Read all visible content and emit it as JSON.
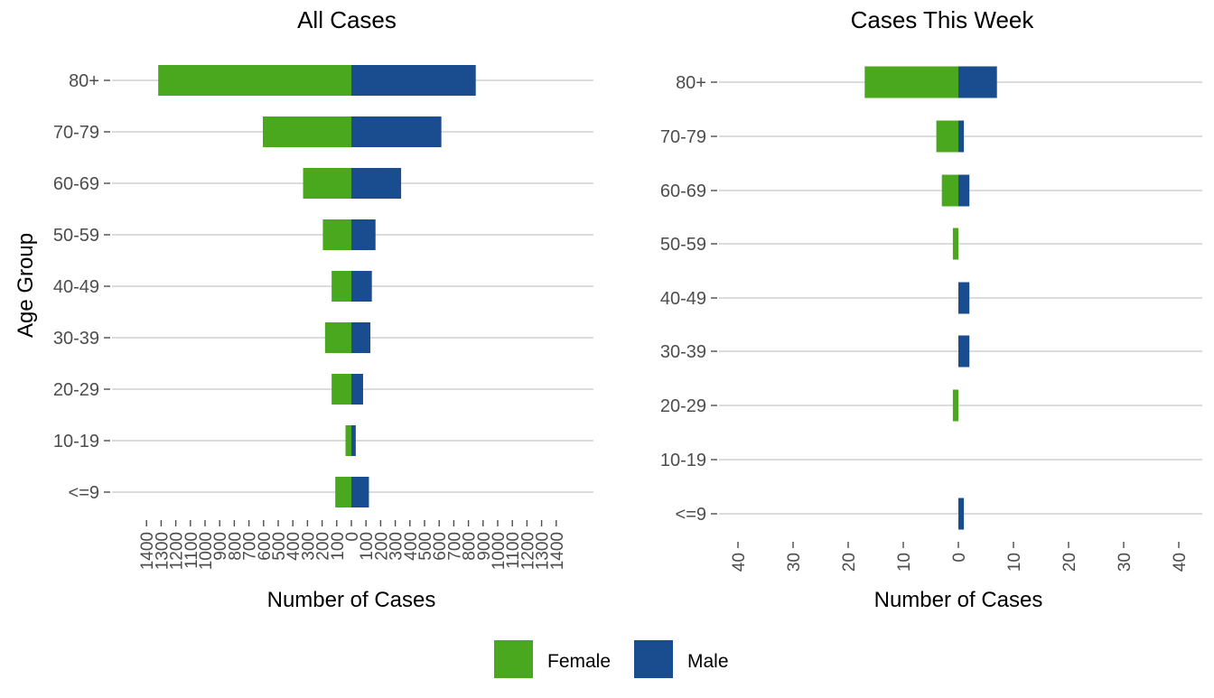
{
  "colors": {
    "female": "#4aa81f",
    "male": "#1a4d8f",
    "grid": "#d0d0d0",
    "tick": "#4d4d4d"
  },
  "shared": {
    "ylabel": "Age Group",
    "xlabel": "Number of Cases"
  },
  "legend": [
    {
      "name": "Female",
      "color": "#4aa81f"
    },
    {
      "name": "Male",
      "color": "#1a4d8f"
    }
  ],
  "chart_data": [
    {
      "type": "bar",
      "orientation": "horizontal-diverging",
      "title": "All Cases",
      "xlabel": "Number of Cases",
      "ylabel": "Age Group",
      "categories": [
        "80+",
        "70-79",
        "60-69",
        "50-59",
        "40-49",
        "30-39",
        "20-29",
        "10-19",
        "<=9"
      ],
      "series": [
        {
          "name": "Female",
          "values": [
            1320,
            605,
            330,
            195,
            135,
            180,
            135,
            40,
            110
          ]
        },
        {
          "name": "Male",
          "values": [
            850,
            615,
            340,
            165,
            140,
            130,
            80,
            30,
            120
          ]
        }
      ],
      "xlim": [
        -1400,
        1400
      ],
      "x_ticks": [
        -1400,
        -1300,
        -1200,
        -1100,
        -1000,
        -900,
        -800,
        -700,
        -600,
        -500,
        -400,
        -300,
        -200,
        -100,
        0,
        100,
        200,
        300,
        400,
        500,
        600,
        700,
        800,
        900,
        1000,
        1100,
        1200,
        1300,
        1400
      ],
      "x_tick_labels": [
        "1400",
        "1300",
        "1200",
        "1100",
        "1000",
        "900",
        "800",
        "700",
        "600",
        "500",
        "400",
        "300",
        "200",
        "100",
        "0",
        "100",
        "200",
        "300",
        "400",
        "500",
        "600",
        "700",
        "800",
        "900",
        "1000",
        "1100",
        "1200",
        "1300",
        "1400"
      ],
      "grid": "horizontal"
    },
    {
      "type": "bar",
      "orientation": "horizontal-diverging",
      "title": "Cases This Week",
      "xlabel": "Number of Cases",
      "ylabel": "",
      "categories": [
        "80+",
        "70-79",
        "60-69",
        "50-59",
        "40-49",
        "30-39",
        "20-29",
        "10-19",
        "<=9"
      ],
      "series": [
        {
          "name": "Female",
          "values": [
            17,
            4,
            3,
            1,
            0,
            0,
            1,
            0,
            0
          ]
        },
        {
          "name": "Male",
          "values": [
            7,
            1,
            2,
            0,
            2,
            2,
            0,
            0,
            1
          ]
        }
      ],
      "xlim": [
        -40,
        40
      ],
      "x_ticks": [
        -40,
        -30,
        -20,
        -10,
        0,
        10,
        20,
        30,
        40
      ],
      "x_tick_labels": [
        "40",
        "30",
        "20",
        "10",
        "0",
        "10",
        "20",
        "30",
        "40"
      ],
      "grid": "horizontal"
    }
  ]
}
